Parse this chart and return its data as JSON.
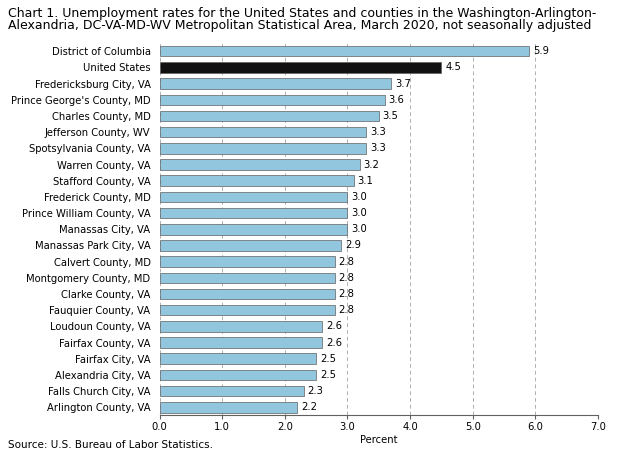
{
  "title_line1": "Chart 1. Unemployment rates for the United States and counties in the Washington-Arlington-",
  "title_line2": "Alexandria, DC-VA-MD-WV Metropolitan Statistical Area, March 2020, not seasonally adjusted",
  "categories": [
    "Arlington County, VA",
    "Falls Church City, VA",
    "Alexandria City, VA",
    "Fairfax City, VA",
    "Fairfax County, VA",
    "Loudoun County, VA",
    "Fauquier County, VA",
    "Clarke County, VA",
    "Montgomery County, MD",
    "Calvert County, MD",
    "Manassas Park City, VA",
    "Manassas City, VA",
    "Prince William County, VA",
    "Frederick County, MD",
    "Stafford County, VA",
    "Warren County, VA",
    "Spotsylvania County, VA",
    "Jefferson County, WV",
    "Charles County, MD",
    "Prince George's County, MD",
    "Fredericksburg City, VA",
    "United States",
    "District of Columbia"
  ],
  "values": [
    2.2,
    2.3,
    2.5,
    2.5,
    2.6,
    2.6,
    2.8,
    2.8,
    2.8,
    2.8,
    2.9,
    3.0,
    3.0,
    3.0,
    3.1,
    3.2,
    3.3,
    3.3,
    3.5,
    3.6,
    3.7,
    4.5,
    5.9
  ],
  "bar_colors": [
    "#92c5de",
    "#92c5de",
    "#92c5de",
    "#92c5de",
    "#92c5de",
    "#92c5de",
    "#92c5de",
    "#92c5de",
    "#92c5de",
    "#92c5de",
    "#92c5de",
    "#92c5de",
    "#92c5de",
    "#92c5de",
    "#92c5de",
    "#92c5de",
    "#92c5de",
    "#92c5de",
    "#92c5de",
    "#92c5de",
    "#92c5de",
    "#111111",
    "#92c5de"
  ],
  "xlabel": "Percent",
  "xlim": [
    0,
    7.0
  ],
  "xticks": [
    0.0,
    1.0,
    2.0,
    3.0,
    4.0,
    5.0,
    6.0,
    7.0
  ],
  "xticklabels": [
    "0.0",
    "1.0",
    "2.0",
    "3.0",
    "4.0",
    "5.0",
    "6.0",
    "7.0"
  ],
  "source": "Source: U.S. Bureau of Labor Statistics.",
  "gridline_color": "#b0b0b0",
  "background_color": "#ffffff",
  "bar_edge_color": "#606060",
  "label_fontsize": 7.2,
  "title_fontsize": 9.0,
  "source_fontsize": 7.5,
  "value_fontsize": 7.2,
  "tick_fontsize": 7.2
}
